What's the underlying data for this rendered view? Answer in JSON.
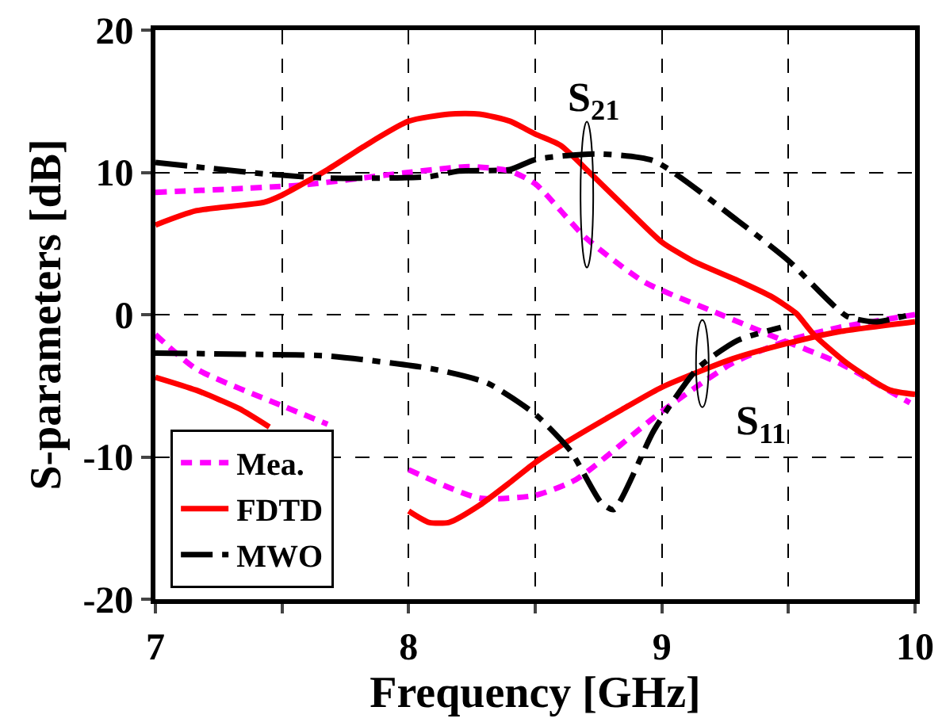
{
  "chart_data": {
    "type": "line",
    "xlabel": "Frequency [GHz]",
    "ylabel": "S-parameters [dB]",
    "xlim": [
      7,
      10
    ],
    "ylim": [
      -20,
      20
    ],
    "xticks": [
      7,
      {
        "value": 7.5,
        "label": null
      },
      8,
      {
        "value": 8.5,
        "label": null
      },
      9,
      {
        "value": 9.5,
        "label": null
      },
      10
    ],
    "yticks": [
      -20,
      -10,
      0,
      10,
      20
    ],
    "grid": true,
    "legend": "bottom left",
    "marker": "none",
    "series": [
      {
        "name": "Mea.",
        "color": "#ff00ff",
        "line_style": "dotted",
        "x": [
          7.0,
          7.57,
          8.0,
          8.24,
          8.4,
          8.5,
          8.7,
          8.93,
          9.22,
          9.45,
          9.7,
          9.98,
          null,
          7.0,
          7.16,
          7.5,
          7.68,
          7.8,
          8.0,
          8.28,
          8.5,
          8.66,
          9.0,
          9.28,
          9.5,
          9.7,
          10.0
        ],
        "values": [
          8.6,
          9.1,
          10.0,
          10.4,
          10.1,
          9.2,
          5.4,
          2.3,
          0.1,
          -1.6,
          -3.4,
          -6.2,
          null,
          -1.4,
          -3.8,
          -6.4,
          -7.7,
          null,
          -10.9,
          -12.9,
          -12.7,
          -11.6,
          -6.8,
          -3.4,
          -1.8,
          -0.9,
          0
        ]
      },
      {
        "name": "FDTD",
        "color": "#ff0000",
        "line_style": "solid",
        "x": [
          7.0,
          7.16,
          7.43,
          7.5,
          7.68,
          7.83,
          8.0,
          8.16,
          8.28,
          8.4,
          8.5,
          8.6,
          8.72,
          8.87,
          9.0,
          9.12,
          9.3,
          9.43,
          9.53,
          9.6,
          9.73,
          9.9,
          10.0,
          null,
          7.0,
          7.16,
          7.33,
          7.45,
          7.7,
          8.0,
          8.08,
          8.16,
          8.28,
          8.4,
          8.5,
          8.62,
          8.83,
          9.0,
          9.28,
          9.5,
          9.7,
          10.0
        ],
        "values": [
          6.3,
          7.3,
          7.9,
          8.4,
          10.2,
          11.9,
          13.6,
          14.1,
          14.1,
          13.6,
          12.7,
          11.9,
          9.9,
          7.3,
          5.1,
          3.8,
          2.4,
          1.3,
          0.1,
          -1.4,
          -3.4,
          -5.3,
          -5.6,
          null,
          -4.4,
          -5.3,
          -6.6,
          -7.9,
          null,
          -13.8,
          -14.6,
          -14.6,
          -13.4,
          -11.8,
          -10.4,
          -9.0,
          -6.8,
          -5.1,
          -3.1,
          -2.0,
          -1.2,
          -0.5
        ]
      },
      {
        "name": "MWO",
        "color": "#000000",
        "line_style": "dashed",
        "x": [
          7.0,
          7.43,
          7.68,
          8.08,
          8.2,
          8.4,
          8.5,
          8.74,
          8.97,
          9.3,
          9.5,
          9.73,
          9.85,
          10.0,
          null,
          7.0,
          7.43,
          7.68,
          8.09,
          8.31,
          8.5,
          8.64,
          8.76,
          8.81,
          8.97,
          9.14,
          9.3,
          9.47
        ],
        "values": [
          10.7,
          9.9,
          9.6,
          9.7,
          10.1,
          10.2,
          10.9,
          11.3,
          10.8,
          6.6,
          3.8,
          -0.1,
          -0.5,
          0.1,
          null,
          -2.7,
          -2.8,
          -2.9,
          -3.8,
          -4.8,
          -7.0,
          -9.6,
          -13.2,
          -13.7,
          -8.1,
          -3.8,
          -1.8,
          -0.9
        ]
      }
    ],
    "annotations": [
      "S$_{21}$",
      "S$_{11}$"
    ]
  }
}
